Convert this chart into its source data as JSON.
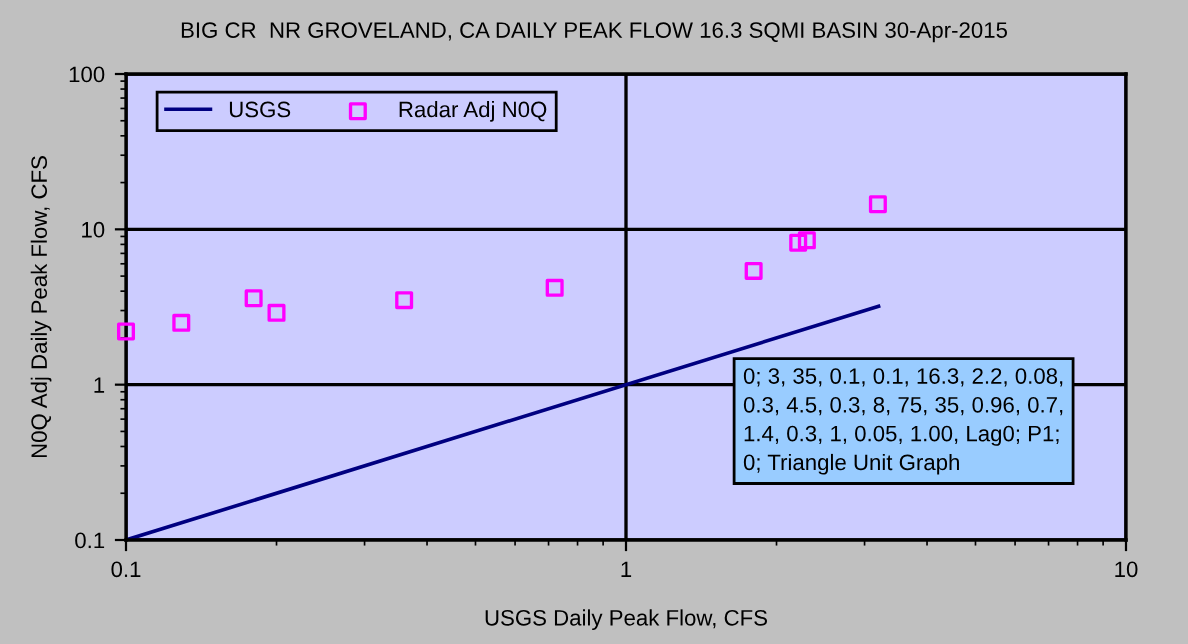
{
  "chart_data": {
    "type": "scatter",
    "title": "BIG CR  NR GROVELAND, CA DAILY PEAK FLOW 16.3 SQMI BASIN 30-Apr-2015",
    "xlabel": "USGS Daily Peak Flow, CFS",
    "ylabel": "N0Q Adj Daily Peak Flow, CFS",
    "log": "xy",
    "xlim": [
      0.1,
      10
    ],
    "ylim": [
      0.1,
      100
    ],
    "xticks": [
      0.1,
      1,
      10
    ],
    "yticks": [
      0.1,
      1,
      10,
      100
    ],
    "grid": true,
    "legend": "top left",
    "series": [
      {
        "name": "USGS",
        "type": "line",
        "color": "#000080",
        "marker": "none",
        "line_style": "solid",
        "x": [
          0.1,
          3.2
        ],
        "values": [
          0.1,
          3.2
        ]
      },
      {
        "name": "Radar Adj N0Q",
        "color": "#ff00ff",
        "marker": "square",
        "x": [
          0.1,
          0.129,
          0.18,
          0.2,
          0.36,
          0.72,
          1.8,
          2.21,
          2.3,
          3.19
        ],
        "values": [
          2.2,
          2.5,
          3.6,
          2.9,
          3.5,
          4.2,
          5.4,
          8.2,
          8.5,
          14.5
        ]
      }
    ],
    "annotations": [
      "0; 3, 35, 0.1, 0.1, 16.3, 2.2, 0.08, 0.3, 4.5, 0.3, 8, 75, 35, 0.96, 0.7, 1.4, 0.3, 1, 0.05, 1.00, Lag0; P1; 0; Triangle Unit Graph"
    ]
  }
}
